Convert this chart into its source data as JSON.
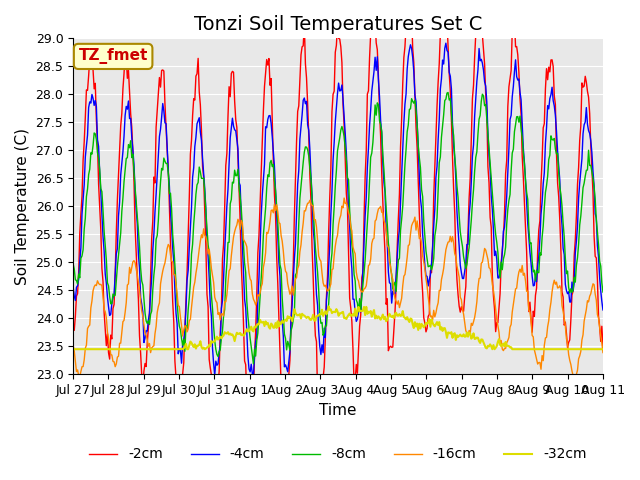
{
  "title": "Tonzi Soil Temperatures Set C",
  "xlabel": "Time",
  "ylabel": "Soil Temperature (C)",
  "ylim": [
    23.0,
    29.0
  ],
  "yticks": [
    23.0,
    23.5,
    24.0,
    24.5,
    25.0,
    25.5,
    26.0,
    26.5,
    27.0,
    27.5,
    28.0,
    28.5,
    29.0
  ],
  "xtick_labels": [
    "Jul 27",
    "Jul 28",
    "Jul 29",
    "Jul 30",
    "Jul 31",
    "Aug 1",
    "Aug 2",
    "Aug 3",
    "Aug 4",
    "Aug 5",
    "Aug 6",
    "Aug 7",
    "Aug 8",
    "Aug 9",
    "Aug 10",
    "Aug 11"
  ],
  "series_colors": [
    "#ff0000",
    "#0000ff",
    "#00bb00",
    "#ff8800",
    "#dddd00"
  ],
  "series_labels": [
    "-2cm",
    "-4cm",
    "-8cm",
    "-16cm",
    "-32cm"
  ],
  "annotation_text": "TZ_fmet",
  "annotation_bg": "#ffffcc",
  "annotation_border": "#aa8800",
  "annotation_text_color": "#cc0000",
  "plot_bg": "#e8e8e8",
  "fig_bg": "#ffffff",
  "title_fontsize": 14,
  "label_fontsize": 11,
  "tick_fontsize": 9,
  "legend_fontsize": 10,
  "n_points": 480,
  "days": 15,
  "base_temp": 26.0,
  "amplitude_2cm": 2.8,
  "amplitude_4cm": 2.0,
  "amplitude_8cm": 1.5,
  "amplitude_16cm": 0.8,
  "amplitude_32cm": 0.06,
  "phase_4cm_rad": 0.31,
  "phase_8cm_rad": 0.65,
  "phase_16cm_rad": 1.2,
  "phase_32cm_rad": 0.0
}
